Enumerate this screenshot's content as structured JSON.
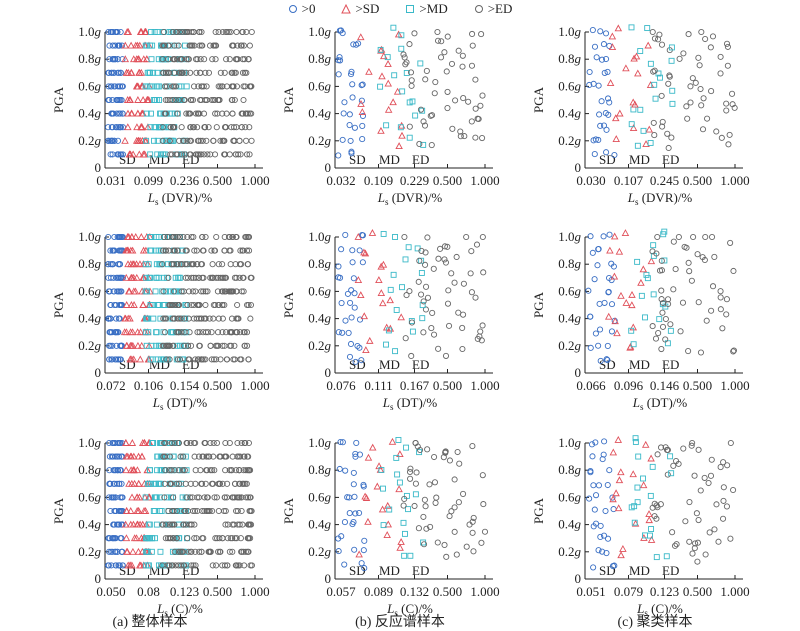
{
  "legend": [
    {
      "label": ">0",
      "color": "#3a6fc4",
      "marker": "circle"
    },
    {
      "label": ">SD",
      "color": "#e0505a",
      "marker": "triangle"
    },
    {
      "label": ">MD",
      "color": "#3ab9c8",
      "marker": "square"
    },
    {
      "label": ">ED",
      "color": "#666666",
      "marker": "circle"
    }
  ],
  "y_axis": {
    "label": "PGA",
    "ticks": [
      "0",
      "0.2g",
      "0.4g",
      "0.6g",
      "0.8g",
      "1.0g"
    ],
    "tick_values": [
      0,
      0.2,
      0.4,
      0.6,
      0.8,
      1.0
    ]
  },
  "captions": [
    "(a) 整体样本",
    "(b) 反应谱样本",
    "(c) 聚类样本"
  ],
  "chart_data": [
    {
      "type": "scatter",
      "row": 0,
      "col": 0,
      "xlabel": "Ls (DVR)/%",
      "x_ticks": [
        "0.031",
        "0.099",
        "0.236",
        "0.500",
        "1.000"
      ],
      "threshold_labels": [
        "SD",
        "MD",
        "ED"
      ],
      "ylim": [
        0,
        1.0
      ],
      "density": "high"
    },
    {
      "type": "scatter",
      "row": 0,
      "col": 1,
      "xlabel": "Ls (DVR)/%",
      "x_ticks": [
        "0.032",
        "0.109",
        "0.229",
        "0.500",
        "1.000"
      ],
      "threshold_labels": [
        "SD",
        "MD",
        "ED"
      ],
      "ylim": [
        0,
        1.0
      ],
      "density": "low"
    },
    {
      "type": "scatter",
      "row": 0,
      "col": 2,
      "xlabel": "Ls (DVR)/%",
      "x_ticks": [
        "0.030",
        "0.107",
        "0.245",
        "0.500",
        "1.000"
      ],
      "threshold_labels": [
        "SD",
        "MD",
        "ED"
      ],
      "ylim": [
        0,
        1.0
      ],
      "density": "low"
    },
    {
      "type": "scatter",
      "row": 1,
      "col": 0,
      "xlabel": "Ls (DT)/%",
      "x_ticks": [
        "0.072",
        "0.106",
        "0.154",
        "0.500",
        "1.000"
      ],
      "threshold_labels": [
        "SD",
        "MD",
        "ED"
      ],
      "ylim": [
        0,
        1.0
      ],
      "density": "high"
    },
    {
      "type": "scatter",
      "row": 1,
      "col": 1,
      "xlabel": "Ls (DT)/%",
      "x_ticks": [
        "0.076",
        "0.111",
        "0.167",
        "0.500",
        "1.000"
      ],
      "threshold_labels": [
        "SD",
        "MD",
        "ED"
      ],
      "ylim": [
        0,
        1.0
      ],
      "density": "low"
    },
    {
      "type": "scatter",
      "row": 1,
      "col": 2,
      "xlabel": "Ls (DT)/%",
      "x_ticks": [
        "0.066",
        "0.096",
        "0.146",
        "0.500",
        "1.000"
      ],
      "threshold_labels": [
        "SD",
        "MD",
        "ED"
      ],
      "ylim": [
        0,
        1.0
      ],
      "density": "low"
    },
    {
      "type": "scatter",
      "row": 2,
      "col": 0,
      "xlabel": "Ls (C)/%",
      "x_ticks": [
        "0.050",
        "0.08",
        "0.123",
        "0.500",
        "1.000"
      ],
      "threshold_labels": [
        "SD",
        "MD",
        "ED"
      ],
      "ylim": [
        0,
        1.0
      ],
      "density": "high"
    },
    {
      "type": "scatter",
      "row": 2,
      "col": 1,
      "xlabel": "Ls (C)/%",
      "x_ticks": [
        "0.057",
        "0.089",
        "0.132",
        "0.500",
        "1.000"
      ],
      "threshold_labels": [
        "SD",
        "MD",
        "ED"
      ],
      "ylim": [
        0,
        1.0
      ],
      "density": "low"
    },
    {
      "type": "scatter",
      "row": 2,
      "col": 2,
      "xlabel": "Ls (C)/%",
      "x_ticks": [
        "0.051",
        "0.079",
        "0.123",
        "0.500",
        "1.000"
      ],
      "threshold_labels": [
        "SD",
        "MD",
        "ED"
      ],
      "ylim": [
        0,
        1.0
      ],
      "density": "low"
    }
  ]
}
